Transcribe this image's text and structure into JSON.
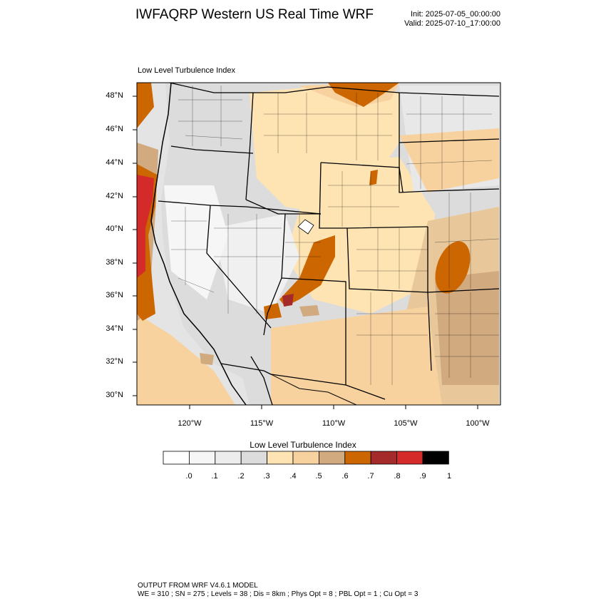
{
  "header": {
    "title": "IWFAQRP Western US Real Time WRF",
    "init": "Init: 2025-07-05_00:00:00",
    "valid": "Valid: 2025-07-10_17:00:00"
  },
  "map": {
    "plot_title": "Low Level Turbulence Index",
    "lat_labels": [
      "48°N",
      "46°N",
      "44°N",
      "42°N",
      "40°N",
      "38°N",
      "36°N",
      "34°N",
      "32°N",
      "30°N"
    ],
    "lon_labels": [
      "120°W",
      "115°W",
      "110°W",
      "105°W",
      "100°W"
    ],
    "extent": {
      "lon_min": -123.6,
      "lon_max": -98.4,
      "lat_min": 29.4,
      "lat_max": 48.7
    }
  },
  "colorbar": {
    "title": "Low Level Turbulence Index",
    "colors": [
      "#ffffff",
      "#f6f6f6",
      "#ededed",
      "#dcdcdc",
      "#ffe4b3",
      "#f7d29e",
      "#d1aa80",
      "#cc6600",
      "#a52a2a",
      "#d42a2a",
      "#000000"
    ],
    "ticks": [
      ".0",
      ".1",
      ".2",
      ".3",
      ".4",
      ".5",
      ".6",
      ".7",
      ".8",
      ".9",
      "1"
    ]
  },
  "footer": {
    "line1": "OUTPUT FROM WRF V4.6.1 MODEL",
    "line2": "WE = 310 ; SN = 275 ; Levels = 38 ; Dis = 8km ; Phys Opt = 8 ; PBL Opt = 1 ; Cu Opt = 3"
  }
}
